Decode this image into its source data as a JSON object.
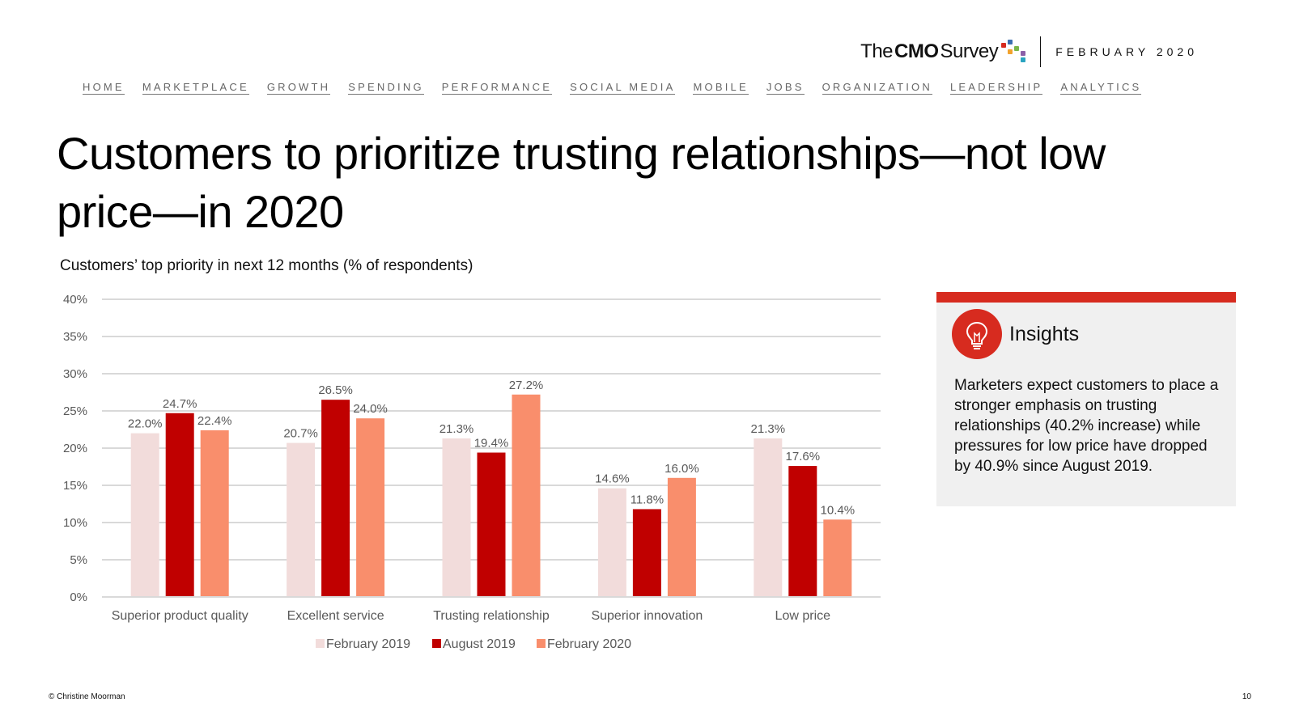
{
  "brand": {
    "logo_the": "The",
    "logo_cmo": "CMO",
    "logo_survey": "Survey",
    "date": "FEBRUARY 2020",
    "dot_colors": [
      "#d72b1f",
      "#3a6fb0",
      "#7ab648",
      "#f2a22c",
      "#8b5fa8",
      "#2aa3c0"
    ]
  },
  "nav": {
    "items": [
      "HOME",
      "MARKETPLACE",
      "GROWTH",
      "SPENDING",
      "PERFORMANCE",
      "SOCIAL MEDIA",
      "MOBILE",
      "JOBS",
      "ORGANIZATION",
      "LEADERSHIP",
      "ANALYTICS"
    ]
  },
  "page": {
    "title": "Customers to prioritize trusting relationships—not low price—in 2020",
    "subtitle": "Customers’ top priority in next 12 months (% of respondents)"
  },
  "chart_data": {
    "type": "bar",
    "title": "",
    "xlabel": "",
    "ylabel": "",
    "ylim": [
      0,
      40
    ],
    "yticks": [
      "0%",
      "5%",
      "10%",
      "15%",
      "20%",
      "25%",
      "30%",
      "35%",
      "40%"
    ],
    "grid": true,
    "legend": "bottom",
    "categories": [
      "Superior product quality",
      "Excellent service",
      "Trusting relationship",
      "Superior innovation",
      "Low price"
    ],
    "series": [
      {
        "name": "February 2019",
        "color": "#f2dcdb",
        "values": [
          22.0,
          20.7,
          21.3,
          14.6,
          21.3
        ]
      },
      {
        "name": "August 2019",
        "color": "#c00000",
        "values": [
          24.7,
          26.5,
          19.4,
          11.8,
          17.6
        ]
      },
      {
        "name": "February 2020",
        "color": "#f98e6c",
        "values": [
          22.4,
          24.0,
          27.2,
          16.0,
          10.4
        ]
      }
    ]
  },
  "insights": {
    "heading": "Insights",
    "icon": "lightbulb-icon",
    "accent": "#d72b1f",
    "text": "Marketers expect customers to place a stronger emphasis on trusting relationships (40.2% increase) while pressures for low price have dropped by 40.9% since August 2019."
  },
  "footer": {
    "copyright": "© Christine Moorman",
    "page_number": "10"
  }
}
